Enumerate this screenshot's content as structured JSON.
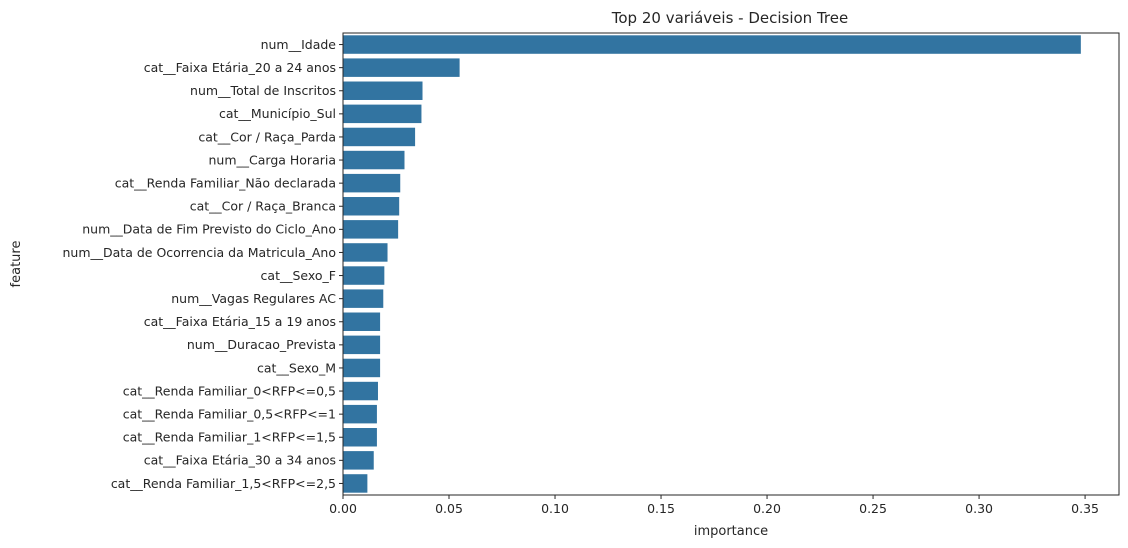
{
  "chart_data": {
    "type": "bar",
    "orientation": "horizontal",
    "title": "Top 20 variáveis - Decision Tree",
    "xlabel": "importance",
    "ylabel": "feature",
    "xlim": [
      0,
      0.366
    ],
    "xticks": [
      0.0,
      0.05,
      0.1,
      0.15,
      0.2,
      0.25,
      0.3,
      0.35
    ],
    "xtick_labels": [
      "0.00",
      "0.05",
      "0.10",
      "0.15",
      "0.20",
      "0.25",
      "0.30",
      "0.35"
    ],
    "bar_color": "#3274a1",
    "grid": false,
    "categories": [
      "num__Idade",
      "cat__Faixa Etária_20 a 24 anos",
      "num__Total de Inscritos",
      "cat__Município_Sul",
      "cat__Cor / Raça_Parda",
      "num__Carga Horaria",
      "cat__Renda Familiar_Não declarada",
      "cat__Cor / Raça_Branca",
      "num__Data de Fim Previsto do Ciclo_Ano",
      "num__Data de Ocorrencia da Matricula_Ano",
      "cat__Sexo_F",
      "num__Vagas Regulares AC",
      "cat__Faixa Etária_15 a 19 anos",
      "num__Duracao_Prevista",
      "cat__Sexo_M",
      "cat__Renda Familiar_0<RFP<=0,5",
      "cat__Renda Familiar_0,5<RFP<=1",
      "cat__Renda Familiar_1<RFP<=1,5",
      "cat__Faixa Etária_30 a 34 anos",
      "cat__Renda Familiar_1,5<RFP<=2,5"
    ],
    "values": [
      0.348,
      0.055,
      0.0375,
      0.037,
      0.034,
      0.029,
      0.027,
      0.0265,
      0.026,
      0.021,
      0.0195,
      0.019,
      0.0175,
      0.0175,
      0.0175,
      0.0165,
      0.016,
      0.016,
      0.0145,
      0.0115
    ]
  }
}
